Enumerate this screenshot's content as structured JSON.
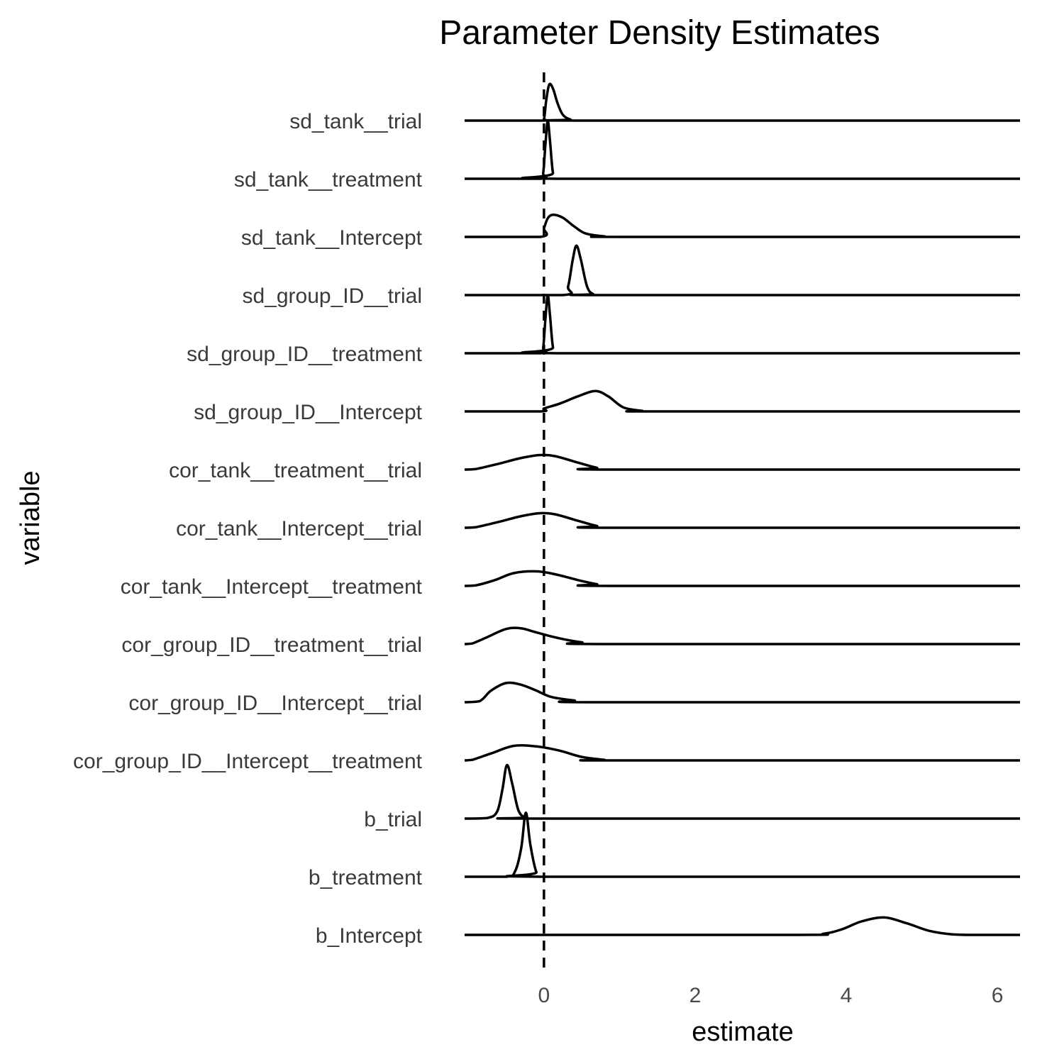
{
  "chart_data": {
    "type": "ridgeline",
    "title": "Parameter Density Estimates",
    "xlabel": "estimate",
    "ylabel": "variable",
    "xlim": [
      -1.05,
      6.3
    ],
    "xticks": [
      0,
      2,
      4,
      6
    ],
    "reference_line": {
      "x": 0,
      "style": "dashed"
    },
    "grid": false,
    "colors": {
      "line": "#000000",
      "text": "#000000",
      "tick_text": "#3a3a3a"
    },
    "series": [
      {
        "name": "sd_tank__trial",
        "density": [
          [
            -1.05,
            0
          ],
          [
            -0.05,
            0
          ],
          [
            0.0,
            0.03
          ],
          [
            0.03,
            0.35
          ],
          [
            0.07,
            0.62
          ],
          [
            0.12,
            0.55
          ],
          [
            0.18,
            0.3
          ],
          [
            0.25,
            0.1
          ],
          [
            0.35,
            0.02
          ],
          [
            0.5,
            0
          ],
          [
            6.3,
            0
          ]
        ]
      },
      {
        "name": "sd_tank__treatment",
        "density": [
          [
            -1.05,
            0
          ],
          [
            -0.05,
            0
          ],
          [
            -0.01,
            0.1
          ],
          [
            0.02,
            0.6
          ],
          [
            0.05,
            1.0
          ],
          [
            0.08,
            0.65
          ],
          [
            0.12,
            0.1
          ],
          [
            0.18,
            0
          ],
          [
            6.3,
            0
          ]
        ]
      },
      {
        "name": "sd_tank__Intercept",
        "density": [
          [
            -1.05,
            0
          ],
          [
            -0.05,
            0
          ],
          [
            0.0,
            0.15
          ],
          [
            0.05,
            0.32
          ],
          [
            0.12,
            0.38
          ],
          [
            0.25,
            0.33
          ],
          [
            0.4,
            0.18
          ],
          [
            0.55,
            0.06
          ],
          [
            0.8,
            0.01
          ],
          [
            1.1,
            0
          ],
          [
            6.3,
            0
          ]
        ]
      },
      {
        "name": "sd_group_ID__trial",
        "density": [
          [
            -1.05,
            0
          ],
          [
            0.25,
            0
          ],
          [
            0.32,
            0.15
          ],
          [
            0.38,
            0.6
          ],
          [
            0.43,
            0.85
          ],
          [
            0.49,
            0.6
          ],
          [
            0.57,
            0.15
          ],
          [
            0.65,
            0.02
          ],
          [
            0.8,
            0
          ],
          [
            6.3,
            0
          ]
        ]
      },
      {
        "name": "sd_group_ID__treatment",
        "density": [
          [
            -1.05,
            0
          ],
          [
            -0.05,
            0
          ],
          [
            -0.01,
            0.1
          ],
          [
            0.02,
            0.6
          ],
          [
            0.05,
            1.0
          ],
          [
            0.08,
            0.65
          ],
          [
            0.12,
            0.1
          ],
          [
            0.18,
            0
          ],
          [
            6.3,
            0
          ]
        ]
      },
      {
        "name": "sd_group_ID__Intercept",
        "density": [
          [
            -1.05,
            0
          ],
          [
            -0.05,
            0
          ],
          [
            0.0,
            0.05
          ],
          [
            0.2,
            0.13
          ],
          [
            0.45,
            0.26
          ],
          [
            0.68,
            0.35
          ],
          [
            0.85,
            0.26
          ],
          [
            1.05,
            0.07
          ],
          [
            1.3,
            0.01
          ],
          [
            1.5,
            0
          ],
          [
            6.3,
            0
          ]
        ]
      },
      {
        "name": "cor_tank__treatment__trial",
        "density": [
          [
            -1.05,
            0
          ],
          [
            -0.9,
            0.01
          ],
          [
            -0.6,
            0.1
          ],
          [
            -0.3,
            0.2
          ],
          [
            -0.05,
            0.25
          ],
          [
            0.15,
            0.23
          ],
          [
            0.45,
            0.12
          ],
          [
            0.7,
            0.03
          ],
          [
            0.9,
            0
          ],
          [
            6.3,
            0
          ]
        ]
      },
      {
        "name": "cor_tank__Intercept__trial",
        "density": [
          [
            -1.05,
            0
          ],
          [
            -0.9,
            0.01
          ],
          [
            -0.6,
            0.1
          ],
          [
            -0.3,
            0.2
          ],
          [
            -0.05,
            0.25
          ],
          [
            0.15,
            0.23
          ],
          [
            0.45,
            0.12
          ],
          [
            0.7,
            0.03
          ],
          [
            0.9,
            0
          ],
          [
            6.3,
            0
          ]
        ]
      },
      {
        "name": "cor_tank__Intercept__treatment",
        "density": [
          [
            -1.05,
            0
          ],
          [
            -0.9,
            0.01
          ],
          [
            -0.65,
            0.1
          ],
          [
            -0.4,
            0.22
          ],
          [
            -0.1,
            0.25
          ],
          [
            0.15,
            0.2
          ],
          [
            0.45,
            0.1
          ],
          [
            0.7,
            0.03
          ],
          [
            0.9,
            0
          ],
          [
            6.3,
            0
          ]
        ]
      },
      {
        "name": "cor_group_ID__treatment__trial",
        "density": [
          [
            -1.05,
            0
          ],
          [
            -0.95,
            0.01
          ],
          [
            -0.75,
            0.12
          ],
          [
            -0.5,
            0.26
          ],
          [
            -0.3,
            0.27
          ],
          [
            -0.1,
            0.2
          ],
          [
            0.2,
            0.1
          ],
          [
            0.5,
            0.03
          ],
          [
            0.8,
            0
          ],
          [
            6.3,
            0
          ]
        ]
      },
      {
        "name": "cor_group_ID__Intercept__trial",
        "density": [
          [
            -1.05,
            0
          ],
          [
            -0.85,
            0.02
          ],
          [
            -0.7,
            0.2
          ],
          [
            -0.5,
            0.33
          ],
          [
            -0.3,
            0.3
          ],
          [
            -0.1,
            0.2
          ],
          [
            0.1,
            0.09
          ],
          [
            0.4,
            0.03
          ],
          [
            0.7,
            0
          ],
          [
            6.3,
            0
          ]
        ]
      },
      {
        "name": "cor_group_ID__Intercept__treatment",
        "density": [
          [
            -1.05,
            0
          ],
          [
            -0.95,
            0.01
          ],
          [
            -0.7,
            0.12
          ],
          [
            -0.4,
            0.25
          ],
          [
            -0.1,
            0.24
          ],
          [
            0.2,
            0.17
          ],
          [
            0.5,
            0.06
          ],
          [
            0.8,
            0.01
          ],
          [
            0.9,
            0
          ],
          [
            6.3,
            0
          ]
        ]
      },
      {
        "name": "b_trial",
        "density": [
          [
            -1.05,
            0
          ],
          [
            -0.75,
            0.01
          ],
          [
            -0.62,
            0.12
          ],
          [
            -0.55,
            0.5
          ],
          [
            -0.49,
            0.92
          ],
          [
            -0.42,
            0.6
          ],
          [
            -0.34,
            0.15
          ],
          [
            -0.25,
            0.02
          ],
          [
            -0.1,
            0
          ],
          [
            6.3,
            0
          ]
        ]
      },
      {
        "name": "b_treatment",
        "density": [
          [
            -1.05,
            0
          ],
          [
            -0.5,
            0
          ],
          [
            -0.38,
            0.1
          ],
          [
            -0.3,
            0.5
          ],
          [
            -0.24,
            1.1
          ],
          [
            -0.18,
            0.55
          ],
          [
            -0.1,
            0.08
          ],
          [
            0.0,
            0
          ],
          [
            6.3,
            0
          ]
        ]
      },
      {
        "name": "b_Intercept",
        "density": [
          [
            -1.05,
            0
          ],
          [
            3.3,
            0
          ],
          [
            3.7,
            0.02
          ],
          [
            3.95,
            0.1
          ],
          [
            4.2,
            0.23
          ],
          [
            4.5,
            0.3
          ],
          [
            4.8,
            0.2
          ],
          [
            5.1,
            0.07
          ],
          [
            5.4,
            0.01
          ],
          [
            5.7,
            0
          ],
          [
            6.3,
            0
          ]
        ]
      }
    ]
  }
}
